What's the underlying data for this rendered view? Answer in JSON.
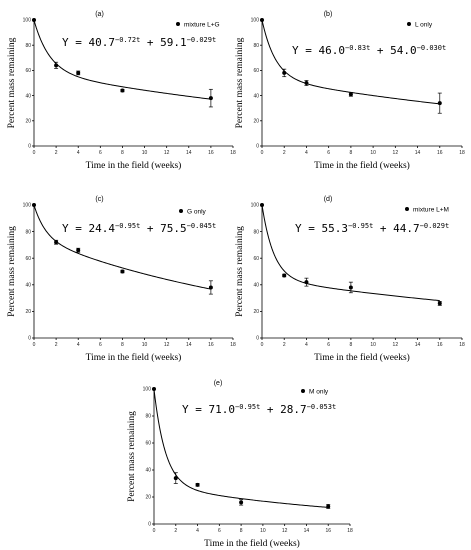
{
  "chart_data": [
    {
      "type": "scatter",
      "panel_label": "(a)",
      "legend": "mixture L+G",
      "equation": {
        "lhs": "Y = ",
        "a": "40.7",
        "e1": "−0.72t",
        "plus": " + ",
        "b": "59.1",
        "e2": "−0.029t"
      },
      "xlabel": "Time in the field (weeks)",
      "ylabel": "Percent mass remaining",
      "xlim": [
        0,
        18
      ],
      "ylim": [
        0,
        100
      ],
      "xticks": [
        0,
        2,
        4,
        6,
        8,
        10,
        12,
        14,
        16,
        18
      ],
      "yticks": [
        0,
        20,
        40,
        60,
        80,
        100
      ],
      "fit": {
        "a": 40.7,
        "k1": 0.72,
        "b": 59.1,
        "k2": 0.029
      },
      "points": [
        {
          "x": 0,
          "y": 100,
          "err": 0
        },
        {
          "x": 2,
          "y": 64,
          "err": 2.5
        },
        {
          "x": 4,
          "y": 58,
          "err": 1.5
        },
        {
          "x": 8,
          "y": 44,
          "err": 1
        },
        {
          "x": 16,
          "y": 38,
          "err": 7
        }
      ]
    },
    {
      "type": "scatter",
      "panel_label": "(b)",
      "legend": "L only",
      "equation": {
        "lhs": "Y = ",
        "a": "46.0",
        "e1": "−0.83t",
        "plus": " + ",
        "b": "54.0",
        "e2": "−0.030t"
      },
      "xlabel": "Time in the field (weeks)",
      "ylabel": "Percent mass remaining",
      "xlim": [
        0,
        18
      ],
      "ylim": [
        0,
        100
      ],
      "xticks": [
        0,
        2,
        4,
        6,
        8,
        10,
        12,
        14,
        16,
        18
      ],
      "yticks": [
        0,
        20,
        40,
        60,
        80,
        100
      ],
      "fit": {
        "a": 46.0,
        "k1": 0.83,
        "b": 54.0,
        "k2": 0.03
      },
      "points": [
        {
          "x": 0,
          "y": 100,
          "err": 0
        },
        {
          "x": 2,
          "y": 58,
          "err": 3
        },
        {
          "x": 4,
          "y": 50,
          "err": 2
        },
        {
          "x": 8,
          "y": 41,
          "err": 1.5
        },
        {
          "x": 16,
          "y": 34,
          "err": 8
        }
      ]
    },
    {
      "type": "scatter",
      "panel_label": "(c)",
      "legend": "G only",
      "equation": {
        "lhs": "Y = ",
        "a": "24.4",
        "e1": "−0.95t",
        "plus": " + ",
        "b": "75.5",
        "e2": "−0.045t"
      },
      "xlabel": "Time in the field (weeks)",
      "ylabel": "Percent mass remaining",
      "xlim": [
        0,
        18
      ],
      "ylim": [
        0,
        100
      ],
      "xticks": [
        0,
        2,
        4,
        6,
        8,
        10,
        12,
        14,
        16,
        18
      ],
      "yticks": [
        0,
        20,
        40,
        60,
        80,
        100
      ],
      "fit": {
        "a": 24.4,
        "k1": 0.95,
        "b": 75.5,
        "k2": 0.045
      },
      "points": [
        {
          "x": 0,
          "y": 100,
          "err": 0
        },
        {
          "x": 2,
          "y": 72,
          "err": 1.5
        },
        {
          "x": 4,
          "y": 66,
          "err": 1.5
        },
        {
          "x": 8,
          "y": 50,
          "err": 1
        },
        {
          "x": 16,
          "y": 38,
          "err": 5
        }
      ]
    },
    {
      "type": "scatter",
      "panel_label": "(d)",
      "legend": "mixture L+M",
      "equation": {
        "lhs": "Y = ",
        "a": "55.3",
        "e1": "−0.95t",
        "plus": " + ",
        "b": "44.7",
        "e2": "−0.029t"
      },
      "xlabel": "Time in the field (weeks)",
      "ylabel": "Percent mass remaining",
      "xlim": [
        0,
        18
      ],
      "ylim": [
        0,
        100
      ],
      "xticks": [
        0,
        2,
        4,
        6,
        8,
        10,
        12,
        14,
        16,
        18
      ],
      "yticks": [
        0,
        20,
        40,
        60,
        80,
        100
      ],
      "fit": {
        "a": 55.3,
        "k1": 0.95,
        "b": 44.7,
        "k2": 0.029
      },
      "points": [
        {
          "x": 0,
          "y": 100,
          "err": 0
        },
        {
          "x": 2,
          "y": 47,
          "err": 1
        },
        {
          "x": 4,
          "y": 42,
          "err": 3
        },
        {
          "x": 8,
          "y": 38,
          "err": 4
        },
        {
          "x": 16,
          "y": 26,
          "err": 1.5
        }
      ]
    },
    {
      "type": "scatter",
      "panel_label": "(e)",
      "legend": "M only",
      "equation": {
        "lhs": "Y = ",
        "a": "71.0",
        "e1": "−0.95t",
        "plus": " + ",
        "b": "28.7",
        "e2": "−0.053t"
      },
      "xlabel": "Time in the field (weeks)",
      "ylabel": "Percent mass remaining",
      "xlim": [
        0,
        18
      ],
      "ylim": [
        0,
        100
      ],
      "xticks": [
        0,
        2,
        4,
        6,
        8,
        10,
        12,
        14,
        16,
        18
      ],
      "yticks": [
        0,
        20,
        40,
        60,
        80,
        100
      ],
      "fit": {
        "a": 71.0,
        "k1": 0.95,
        "b": 28.7,
        "k2": 0.053
      },
      "points": [
        {
          "x": 0,
          "y": 100,
          "err": 0
        },
        {
          "x": 2,
          "y": 34,
          "err": 4
        },
        {
          "x": 4,
          "y": 29,
          "err": 1
        },
        {
          "x": 8,
          "y": 16,
          "err": 2
        },
        {
          "x": 16,
          "y": 13,
          "err": 1.5
        }
      ]
    }
  ]
}
